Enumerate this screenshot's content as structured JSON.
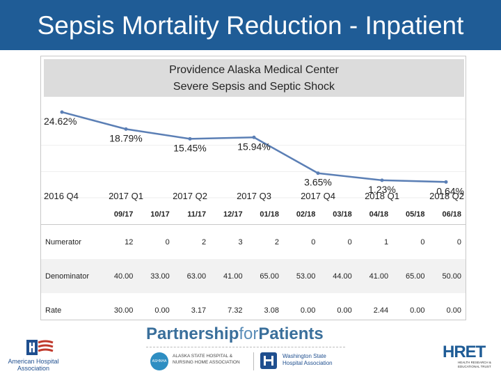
{
  "slide": {
    "title": "Sepsis Mortality Reduction - Inpatient"
  },
  "chart_header": {
    "line1": "Providence Alaska Medical Center",
    "line2": "Severe Sepsis and Septic Shock"
  },
  "chart_data": {
    "type": "line",
    "title": "Providence Alaska Medical Center",
    "subtitle": "Severe Sepsis and Septic Shock",
    "categories": [
      "2016 Q4",
      "2017 Q1",
      "2017 Q2",
      "2017 Q3",
      "2017 Q4",
      "2018 Q1",
      "2018 Q2"
    ],
    "series": [
      {
        "values": [
          24.62,
          18.79,
          15.45,
          15.94,
          3.65,
          1.23,
          0.64
        ],
        "labels": [
          "24.62%",
          "18.79%",
          "15.45%",
          "15.94%",
          "3.65%",
          "1.23%",
          "0.64%"
        ]
      }
    ],
    "ylim": [
      0,
      27
    ],
    "line_color": "#5b7fb5",
    "grid": true,
    "legend": "none"
  },
  "table": {
    "columns": [
      "09/17",
      "10/17",
      "11/17",
      "12/17",
      "01/18",
      "02/18",
      "03/18",
      "04/18",
      "05/18",
      "06/18"
    ],
    "rows": [
      {
        "label": "Numerator",
        "values": [
          "12",
          "0",
          "2",
          "3",
          "2",
          "0",
          "0",
          "1",
          "0",
          "0"
        ]
      },
      {
        "label": "Denominator",
        "values": [
          "40.00",
          "33.00",
          "63.00",
          "41.00",
          "65.00",
          "53.00",
          "44.00",
          "41.00",
          "65.00",
          "50.00"
        ]
      },
      {
        "label": "Rate",
        "values": [
          "30.00",
          "0.00",
          "3.17",
          "7.32",
          "3.08",
          "0.00",
          "0.00",
          "2.44",
          "0.00",
          "0.00"
        ]
      }
    ]
  },
  "footer": {
    "partnership_bold": "Partnership",
    "partnership_for": "for",
    "partnership_patients": "Patients",
    "aha_name": "American Hospital Association",
    "ashnha_badge": "ASHNHA",
    "ashnha_line1": "ALASKA STATE HOSPITAL &",
    "ashnha_line2": "NURSING HOME ASSOCIATION",
    "wsha_line1": "Washington State",
    "wsha_line2": "Hospital Association",
    "hret_name": "HRET",
    "hret_sub": "HEALTH RESEARCH & EDUCATIONAL TRUST"
  },
  "colors": {
    "banner": "#1f5c96",
    "line": "#5b7fb5",
    "header_bg": "#dcdcdc"
  }
}
